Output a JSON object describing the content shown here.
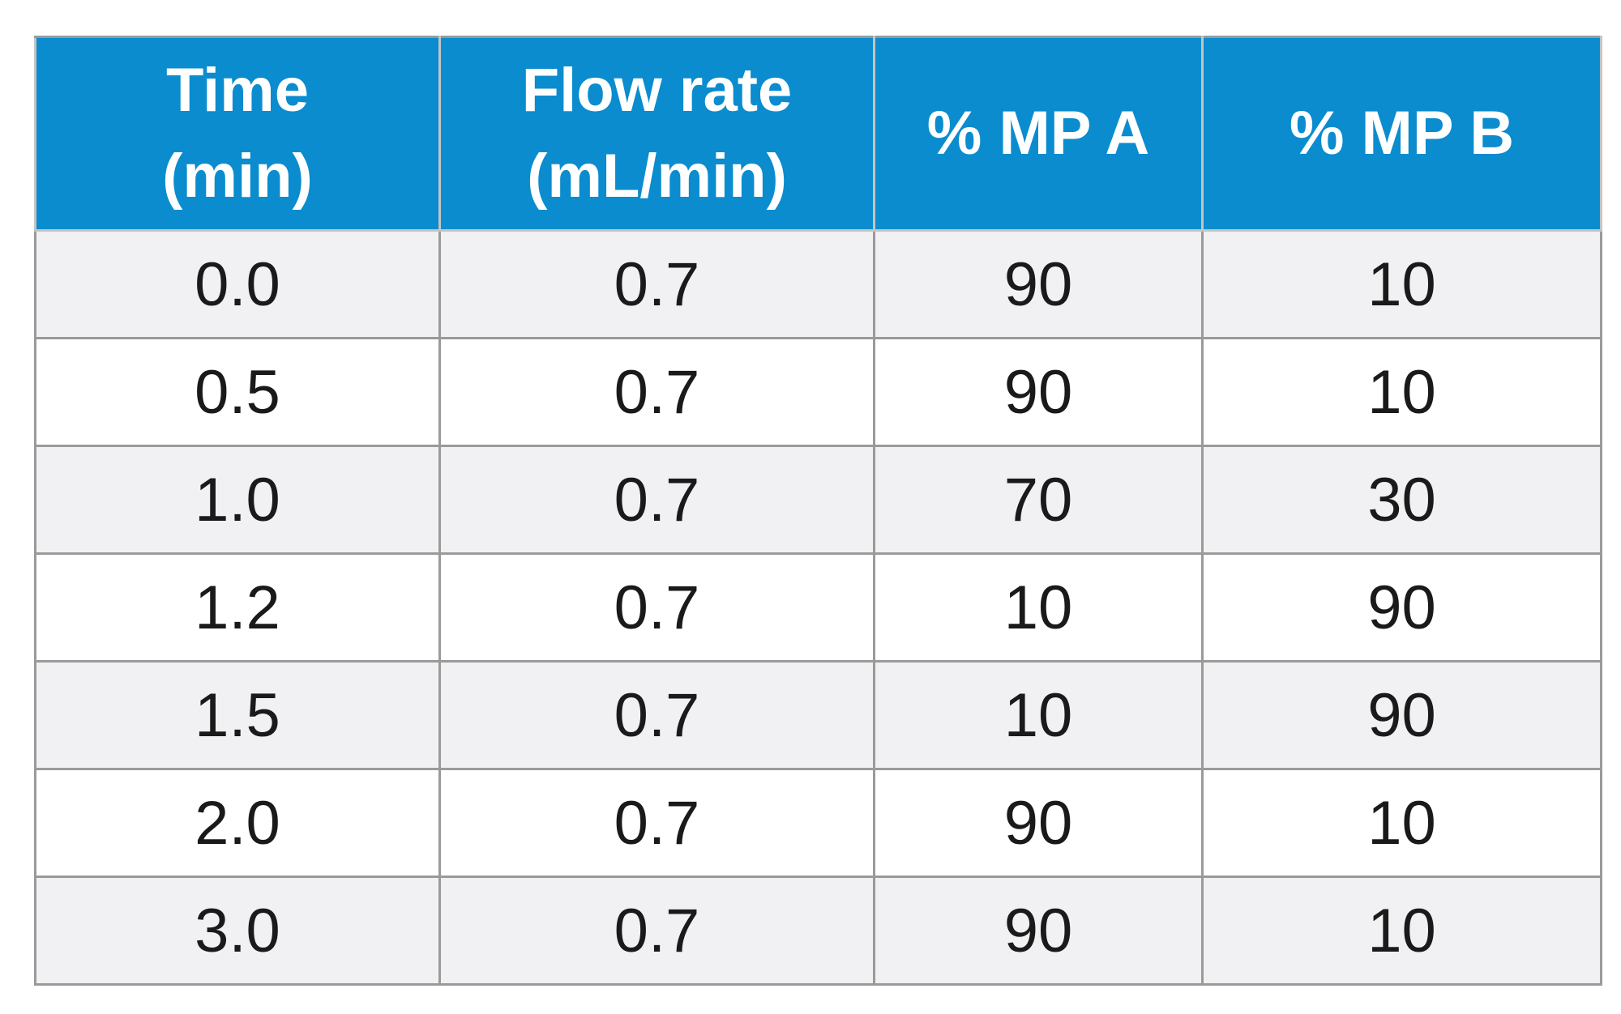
{
  "table": {
    "headers": [
      {
        "line1": "Time",
        "line2": "(min)"
      },
      {
        "line1": "Flow rate",
        "line2": "(mL/min)"
      },
      {
        "line1": "% MP A",
        "line2": ""
      },
      {
        "line1": "% MP B",
        "line2": ""
      }
    ],
    "rows": [
      [
        "0.0",
        "0.7",
        "90",
        "10"
      ],
      [
        "0.5",
        "0.7",
        "90",
        "10"
      ],
      [
        "1.0",
        "0.7",
        "70",
        "30"
      ],
      [
        "1.2",
        "0.7",
        "10",
        "90"
      ],
      [
        "1.5",
        "0.7",
        "10",
        "90"
      ],
      [
        "2.0",
        "0.7",
        "90",
        "10"
      ],
      [
        "3.0",
        "0.7",
        "90",
        "10"
      ]
    ]
  },
  "colors": {
    "header_background": "#0a8ccf",
    "header_text": "#ffffff",
    "row_alt_background": "#f1f1f3",
    "border": "#9a9a9a"
  }
}
